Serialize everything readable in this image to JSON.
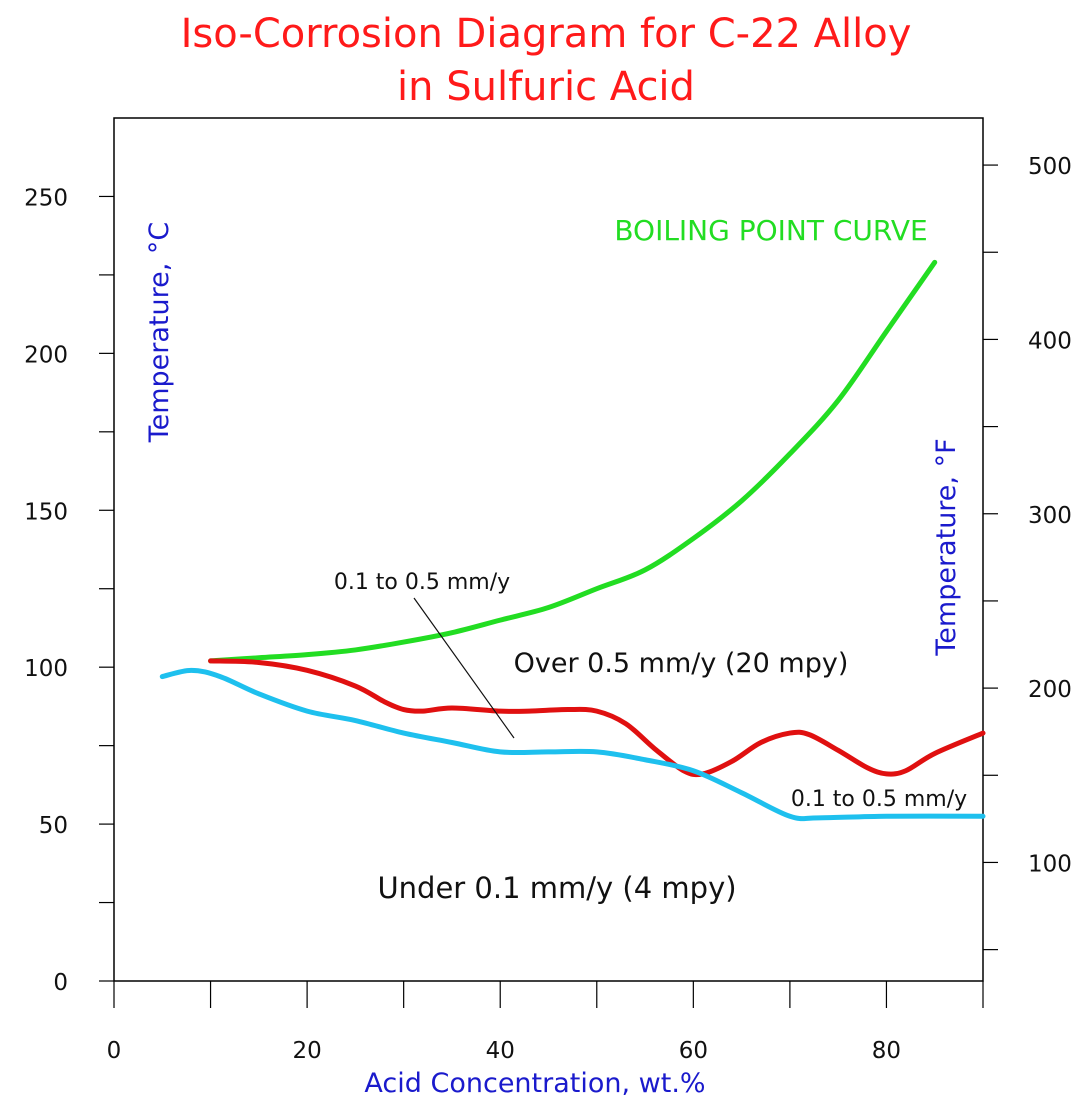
{
  "chart_data": {
    "type": "line",
    "title": "Iso-Corrosion Diagram for C-22 Alloy",
    "subtitle": "in Sulfuric Acid",
    "xlabel": "Acid Concentration, wt.%",
    "ylabel": "Temperature, °C",
    "ylabel_right": "Temperature, °F",
    "xlim": [
      0,
      90
    ],
    "ylim": [
      0,
      275
    ],
    "ylim_right": [
      32,
      527
    ],
    "x_ticks": [
      0,
      20,
      40,
      60,
      80
    ],
    "y_ticks": [
      0,
      50,
      100,
      150,
      200,
      250
    ],
    "y_ticks_right": [
      100,
      200,
      300,
      400,
      500
    ],
    "grid": false,
    "colors": {
      "title": "#ff1a1a",
      "axis_label": "#1a1acc",
      "boiling": "#22dd22",
      "red_curve": "#e01010",
      "blue_curve": "#1ec0ee",
      "annotation": "#111111"
    },
    "series": [
      {
        "name": "BOILING POINT CURVE",
        "color": "#22dd22",
        "points": [
          [
            10,
            102
          ],
          [
            15,
            103
          ],
          [
            20,
            104
          ],
          [
            25,
            105.5
          ],
          [
            30,
            108
          ],
          [
            35,
            111
          ],
          [
            40,
            115
          ],
          [
            45,
            119
          ],
          [
            50,
            125
          ],
          [
            55,
            131
          ],
          [
            60,
            141
          ],
          [
            65,
            153
          ],
          [
            70,
            168
          ],
          [
            75,
            185
          ],
          [
            80,
            207
          ],
          [
            85,
            229
          ]
        ]
      },
      {
        "color": "#e01010",
        "points": [
          [
            10,
            102
          ],
          [
            15,
            101.5
          ],
          [
            20,
            99
          ],
          [
            25,
            94
          ],
          [
            28,
            89
          ],
          [
            30,
            86.5
          ],
          [
            32,
            86
          ],
          [
            35,
            87
          ],
          [
            40,
            86
          ],
          [
            43,
            86
          ],
          [
            47,
            86.5
          ],
          [
            50,
            86
          ],
          [
            53,
            82
          ],
          [
            56,
            74
          ],
          [
            59,
            67
          ],
          [
            61,
            66
          ],
          [
            64,
            70
          ],
          [
            67,
            76
          ],
          [
            70,
            79
          ],
          [
            72,
            78.5
          ],
          [
            75,
            73.5
          ],
          [
            78,
            68
          ],
          [
            80,
            66
          ],
          [
            82,
            67
          ],
          [
            85,
            72.5
          ],
          [
            90,
            79
          ]
        ]
      },
      {
        "color": "#1ec0ee",
        "points": [
          [
            5,
            97
          ],
          [
            8,
            99
          ],
          [
            11,
            97
          ],
          [
            15,
            91.5
          ],
          [
            20,
            86
          ],
          [
            25,
            83
          ],
          [
            30,
            79
          ],
          [
            35,
            76
          ],
          [
            40,
            73
          ],
          [
            45,
            73
          ],
          [
            50,
            73
          ],
          [
            55,
            70.5
          ],
          [
            60,
            67
          ],
          [
            65,
            60
          ],
          [
            70,
            52.5
          ],
          [
            73,
            52
          ],
          [
            80,
            52.5
          ],
          [
            90,
            52.5
          ]
        ]
      }
    ],
    "annotations": {
      "region_upper": "Over 0.5 mm/y (20 mpy)",
      "region_lower": "Under 0.1 mm/y (4 mpy)",
      "band_left": "0.1 to 0.5 mm/y",
      "band_right": "0.1 to 0.5 mm/y",
      "boiling_label": "BOILING POINT CURVE"
    }
  }
}
